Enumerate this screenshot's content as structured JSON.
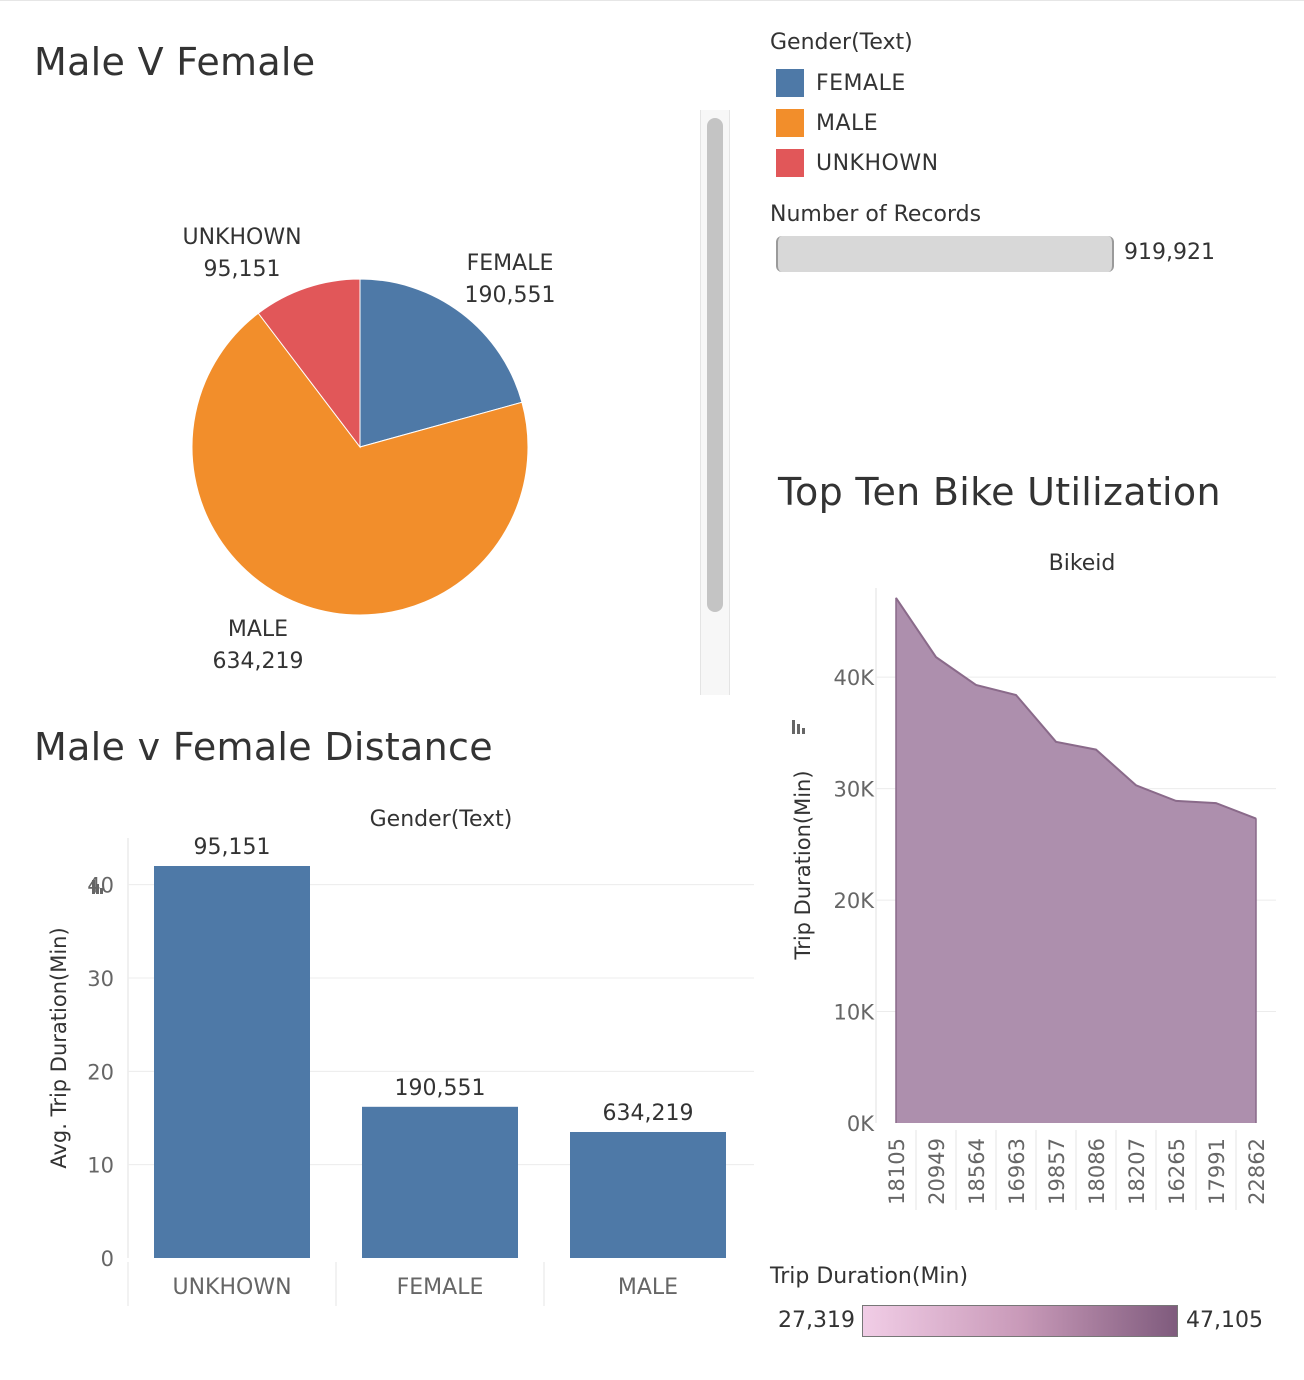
{
  "pie_panel": {
    "title": "Male V Female"
  },
  "legend": {
    "title": "Gender(Text)",
    "items": [
      {
        "label": "FEMALE",
        "color": "#4e79a7"
      },
      {
        "label": "MALE",
        "color": "#f28e2b"
      },
      {
        "label": "UNKHOWN",
        "color": "#e15759"
      }
    ]
  },
  "records": {
    "title": "Number of Records",
    "value": "919,921"
  },
  "bar_panel": {
    "title": "Male v Female Distance"
  },
  "area_panel": {
    "title": "Top Ten Bike Utilization"
  },
  "color_legend": {
    "title": "Trip Duration(Min)",
    "min_label": "27,319",
    "max_label": "47,105",
    "colors": [
      "#f1cde6",
      "#7f5b7d"
    ]
  },
  "chart_data": [
    {
      "type": "pie",
      "title": "Male V Female",
      "categories": [
        "FEMALE",
        "MALE",
        "UNKHOWN"
      ],
      "values": [
        190551,
        634219,
        95151
      ],
      "value_labels": [
        "190,551",
        "634,219",
        "95,151"
      ],
      "colors": [
        "#4e79a7",
        "#f28e2b",
        "#e15759"
      ]
    },
    {
      "type": "bar",
      "title": "Male v Female Distance",
      "column_header": "Gender(Text)",
      "ylabel": "Avg. Trip Duration(Min)",
      "categories": [
        "UNKHOWN",
        "FEMALE",
        "MALE"
      ],
      "values": [
        42,
        16.2,
        13.5
      ],
      "bar_labels": [
        "95,151",
        "190,551",
        "634,219"
      ],
      "ylim": [
        0,
        45
      ],
      "yticks": [
        0,
        10,
        20,
        30,
        40
      ],
      "grid": true,
      "color": "#4e79a7"
    },
    {
      "type": "area",
      "title": "Top Ten Bike Utilization",
      "column_header": "Bikeid",
      "ylabel": "Trip Duration(Min)",
      "categories": [
        "18105",
        "20949",
        "18564",
        "16963",
        "19857",
        "18086",
        "18207",
        "16265",
        "17991",
        "22862"
      ],
      "values": [
        47105,
        41800,
        39300,
        38400,
        34200,
        33500,
        30300,
        28900,
        28700,
        27319
      ],
      "ylim": [
        0,
        48000
      ],
      "yticks": [
        0,
        10000,
        20000,
        30000,
        40000
      ],
      "ytick_labels": [
        "0K",
        "10K",
        "20K",
        "30K",
        "40K"
      ],
      "grid": true,
      "fill_color": "#ad8fad",
      "line_color": "#8a6a8a"
    }
  ]
}
